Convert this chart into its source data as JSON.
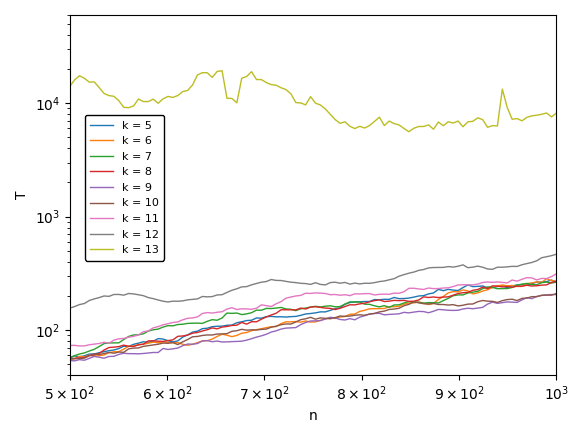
{
  "xlabel": "n",
  "ylabel": "T",
  "xlim": [
    500,
    1000
  ],
  "ylim_log": [
    40,
    60000
  ],
  "legend_labels": [
    "k = 5",
    "k = 6",
    "k = 7",
    "k = 8",
    "k = 9",
    "k = 10",
    "k = 11",
    "k = 12",
    "k = 13"
  ],
  "line_colors": [
    "#1f77b4",
    "#ff7f0e",
    "#2ca02c",
    "#d62728",
    "#9467bd",
    "#8c564b",
    "#e377c2",
    "#7f7f7f",
    "#bcbd22"
  ],
  "n_start": 500,
  "n_end": 1000,
  "n_points": 100
}
